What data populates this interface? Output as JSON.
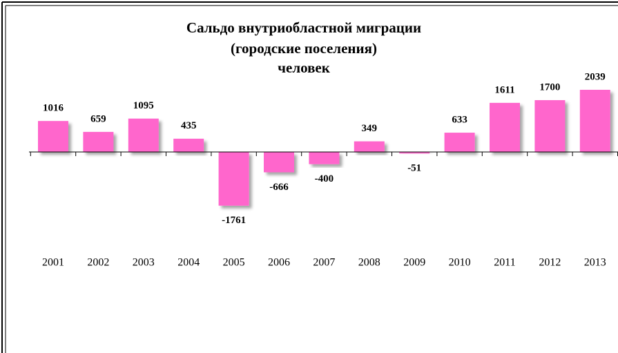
{
  "chart_data": {
    "type": "bar",
    "title": [
      "Сальдо внутриобластной миграции",
      "(городские поселения)",
      "человек"
    ],
    "categories": [
      "2001",
      "2002",
      "2003",
      "2004",
      "2005",
      "2006",
      "2007",
      "2008",
      "2009",
      "2010",
      "2011",
      "2012",
      "2013"
    ],
    "values": [
      1016,
      659,
      1095,
      435,
      -1761,
      -666,
      -400,
      349,
      -51,
      633,
      1611,
      1700,
      2039
    ],
    "color": "#ff66cc"
  }
}
